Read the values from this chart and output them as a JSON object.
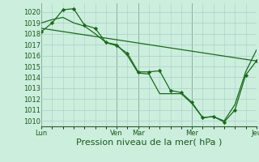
{
  "background_color": "#cceedd",
  "grid_color": "#aacccc",
  "line_color": "#1a6b1a",
  "marker_color": "#1a6b1a",
  "ylabel_ticks": [
    1010,
    1011,
    1012,
    1013,
    1014,
    1015,
    1016,
    1017,
    1018,
    1019,
    1020
  ],
  "ylim": [
    1009.5,
    1020.8
  ],
  "xlabel": "Pression niveau de la mer( hPa )",
  "day_labels": [
    "Lun",
    "Ven",
    "Mar",
    "Mer",
    "Jeu"
  ],
  "day_positions": [
    0,
    3.5,
    4.5,
    7.0,
    10.0
  ],
  "vline_positions": [
    0,
    3.5,
    4.5,
    7.0,
    10.0
  ],
  "xlim": [
    0,
    10.0
  ],
  "series1_x": [
    0,
    0.5,
    1.0,
    1.5,
    2.0,
    2.5,
    3.0,
    3.5,
    4.0,
    4.5,
    5.0,
    5.5,
    6.0,
    6.5,
    7.0,
    7.5,
    8.0,
    8.5,
    9.0,
    9.5,
    10.0
  ],
  "series1_y": [
    1018.2,
    1019.0,
    1020.2,
    1020.3,
    1018.8,
    1018.5,
    1017.2,
    1016.9,
    1016.2,
    1014.5,
    1014.5,
    1014.6,
    1012.8,
    1012.6,
    1011.7,
    1010.3,
    1010.4,
    1009.9,
    1011.0,
    1014.2,
    1015.5
  ],
  "series2_x": [
    0,
    10.0
  ],
  "series2_y": [
    1018.5,
    1015.5
  ],
  "series3_x": [
    0,
    0.5,
    1.0,
    1.5,
    2.0,
    2.5,
    3.0,
    3.5,
    4.0,
    4.5,
    5.0,
    5.5,
    6.0,
    6.5,
    7.0,
    7.5,
    8.0,
    8.5,
    9.0,
    9.5,
    10.0
  ],
  "series3_y": [
    1019.0,
    1019.3,
    1019.5,
    1019.0,
    1018.7,
    1018.0,
    1017.2,
    1017.0,
    1016.0,
    1014.4,
    1014.3,
    1012.5,
    1012.5,
    1012.5,
    1011.6,
    1010.3,
    1010.4,
    1010.0,
    1011.5,
    1014.5,
    1016.5
  ],
  "tick_fontsize": 6,
  "xlabel_fontsize": 8
}
